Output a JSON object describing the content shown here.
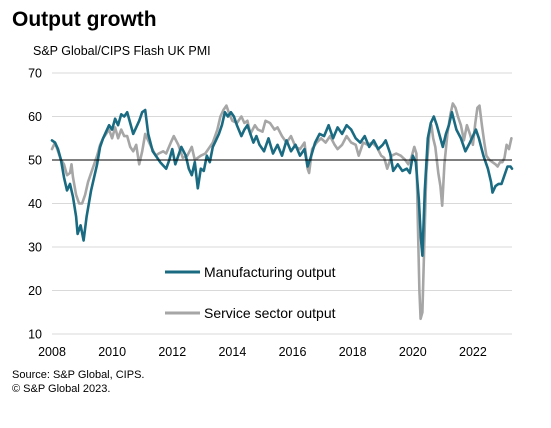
{
  "title": "Output growth",
  "subtitle": "S&P Global/CIPS Flash UK PMI",
  "footer": {
    "source": "Source: S&P Global, CIPS.",
    "copyright": "© S&P Global 2023."
  },
  "chart_data": {
    "type": "line",
    "title": "Output growth",
    "subtitle": "S&P Global/CIPS Flash UK PMI",
    "xlabel": "",
    "ylabel": "",
    "xlim": [
      2008,
      2023.3
    ],
    "ylim": [
      10,
      70
    ],
    "x_ticks": [
      "2008",
      "2010",
      "2012",
      "2014",
      "2016",
      "2018",
      "2020",
      "2022"
    ],
    "y_ticks": [
      "70",
      "60",
      "50",
      "40",
      "30",
      "20",
      "10"
    ],
    "reference_line": 50,
    "grid": "horizontal",
    "legend": "center",
    "series": [
      {
        "name": "Manufacturing output",
        "color": "#1a6b82",
        "points": [
          [
            2008.0,
            54.5
          ],
          [
            2008.1,
            54
          ],
          [
            2008.2,
            52.5
          ],
          [
            2008.3,
            50
          ],
          [
            2008.4,
            46
          ],
          [
            2008.5,
            43
          ],
          [
            2008.6,
            44.5
          ],
          [
            2008.7,
            41.5
          ],
          [
            2008.8,
            37
          ],
          [
            2008.85,
            33
          ],
          [
            2008.95,
            35
          ],
          [
            2009.05,
            31.5
          ],
          [
            2009.15,
            37
          ],
          [
            2009.3,
            43
          ],
          [
            2009.5,
            49
          ],
          [
            2009.6,
            53
          ],
          [
            2009.7,
            55
          ],
          [
            2009.8,
            56.5
          ],
          [
            2009.9,
            58
          ],
          [
            2010.0,
            57
          ],
          [
            2010.1,
            59.5
          ],
          [
            2010.2,
            58
          ],
          [
            2010.3,
            60.5
          ],
          [
            2010.4,
            60
          ],
          [
            2010.5,
            61
          ],
          [
            2010.6,
            58.5
          ],
          [
            2010.7,
            56
          ],
          [
            2010.8,
            57.5
          ],
          [
            2010.9,
            59
          ],
          [
            2011.0,
            61
          ],
          [
            2011.1,
            61.5
          ],
          [
            2011.2,
            56
          ],
          [
            2011.35,
            52
          ],
          [
            2011.5,
            50.5
          ],
          [
            2011.6,
            49.5
          ],
          [
            2011.8,
            48
          ],
          [
            2011.9,
            50
          ],
          [
            2012.0,
            52.5
          ],
          [
            2012.1,
            49
          ],
          [
            2012.2,
            51
          ],
          [
            2012.3,
            53
          ],
          [
            2012.45,
            51
          ],
          [
            2012.55,
            48
          ],
          [
            2012.65,
            46.5
          ],
          [
            2012.75,
            49.5
          ],
          [
            2012.85,
            43.5
          ],
          [
            2012.95,
            48
          ],
          [
            2013.05,
            47.5
          ],
          [
            2013.15,
            51
          ],
          [
            2013.25,
            49.5
          ],
          [
            2013.35,
            53
          ],
          [
            2013.45,
            54.5
          ],
          [
            2013.55,
            56
          ],
          [
            2013.65,
            58
          ],
          [
            2013.75,
            61
          ],
          [
            2013.85,
            60
          ],
          [
            2013.95,
            61
          ],
          [
            2014.05,
            60
          ],
          [
            2014.15,
            58
          ],
          [
            2014.3,
            55.5
          ],
          [
            2014.4,
            57
          ],
          [
            2014.5,
            58
          ],
          [
            2014.6,
            56
          ],
          [
            2014.7,
            54
          ],
          [
            2014.8,
            55.5
          ],
          [
            2014.9,
            53.5
          ],
          [
            2015.05,
            52
          ],
          [
            2015.2,
            55
          ],
          [
            2015.35,
            51.5
          ],
          [
            2015.5,
            53.5
          ],
          [
            2015.65,
            51
          ],
          [
            2015.8,
            54.5
          ],
          [
            2015.95,
            52
          ],
          [
            2016.1,
            53.5
          ],
          [
            2016.25,
            51
          ],
          [
            2016.4,
            52.5
          ],
          [
            2016.5,
            48.5
          ],
          [
            2016.6,
            50.5
          ],
          [
            2016.75,
            54
          ],
          [
            2016.9,
            56
          ],
          [
            2017.05,
            55.5
          ],
          [
            2017.2,
            58
          ],
          [
            2017.35,
            55
          ],
          [
            2017.5,
            57.5
          ],
          [
            2017.65,
            56
          ],
          [
            2017.8,
            58
          ],
          [
            2017.95,
            57
          ],
          [
            2018.1,
            55
          ],
          [
            2018.25,
            54
          ],
          [
            2018.4,
            55.5
          ],
          [
            2018.55,
            53
          ],
          [
            2018.7,
            54.5
          ],
          [
            2018.85,
            52.5
          ],
          [
            2019.0,
            53.5
          ],
          [
            2019.1,
            54.5
          ],
          [
            2019.25,
            51.5
          ],
          [
            2019.35,
            47.5
          ],
          [
            2019.5,
            49
          ],
          [
            2019.65,
            47.5
          ],
          [
            2019.8,
            48
          ],
          [
            2019.9,
            47
          ],
          [
            2020.0,
            51
          ],
          [
            2020.1,
            49.5
          ],
          [
            2020.2,
            41
          ],
          [
            2020.27,
            32
          ],
          [
            2020.32,
            28
          ],
          [
            2020.4,
            43
          ],
          [
            2020.5,
            55
          ],
          [
            2020.6,
            58.5
          ],
          [
            2020.7,
            60
          ],
          [
            2020.8,
            58
          ],
          [
            2020.9,
            55.5
          ],
          [
            2021.0,
            53
          ],
          [
            2021.1,
            56
          ],
          [
            2021.2,
            58
          ],
          [
            2021.3,
            61
          ],
          [
            2021.45,
            57
          ],
          [
            2021.6,
            55
          ],
          [
            2021.75,
            52
          ],
          [
            2021.9,
            54
          ],
          [
            2022.0,
            55.5
          ],
          [
            2022.1,
            57
          ],
          [
            2022.2,
            55
          ],
          [
            2022.35,
            51
          ],
          [
            2022.5,
            48
          ],
          [
            2022.6,
            45
          ],
          [
            2022.65,
            42.5
          ],
          [
            2022.75,
            44
          ],
          [
            2022.85,
            44.5
          ],
          [
            2022.95,
            44.5
          ],
          [
            2023.05,
            46.5
          ],
          [
            2023.15,
            48.5
          ],
          [
            2023.25,
            48.5
          ],
          [
            2023.3,
            48
          ]
        ]
      },
      {
        "name": "Service sector output",
        "color": "#a6a6a6",
        "points": [
          [
            2008.0,
            52.5
          ],
          [
            2008.1,
            54
          ],
          [
            2008.2,
            52
          ],
          [
            2008.3,
            50
          ],
          [
            2008.4,
            49
          ],
          [
            2008.5,
            46.5
          ],
          [
            2008.6,
            47
          ],
          [
            2008.65,
            49
          ],
          [
            2008.7,
            46
          ],
          [
            2008.8,
            42
          ],
          [
            2008.9,
            40
          ],
          [
            2009.0,
            40
          ],
          [
            2009.1,
            42
          ],
          [
            2009.2,
            45
          ],
          [
            2009.35,
            48
          ],
          [
            2009.5,
            51
          ],
          [
            2009.6,
            53.5
          ],
          [
            2009.7,
            55
          ],
          [
            2009.8,
            56
          ],
          [
            2009.9,
            57
          ],
          [
            2010.0,
            55
          ],
          [
            2010.1,
            57.5
          ],
          [
            2010.2,
            55
          ],
          [
            2010.3,
            57
          ],
          [
            2010.4,
            55.5
          ],
          [
            2010.5,
            55.5
          ],
          [
            2010.6,
            53
          ],
          [
            2010.7,
            52
          ],
          [
            2010.8,
            53.5
          ],
          [
            2010.9,
            49
          ],
          [
            2011.0,
            52
          ],
          [
            2011.1,
            56
          ],
          [
            2011.2,
            54.5
          ],
          [
            2011.3,
            53
          ],
          [
            2011.45,
            51
          ],
          [
            2011.55,
            51.5
          ],
          [
            2011.7,
            52
          ],
          [
            2011.8,
            51.5
          ],
          [
            2011.95,
            54
          ],
          [
            2012.05,
            55.5
          ],
          [
            2012.2,
            53.5
          ],
          [
            2012.35,
            50.5
          ],
          [
            2012.5,
            51
          ],
          [
            2012.65,
            53
          ],
          [
            2012.75,
            50
          ],
          [
            2012.85,
            50.5
          ],
          [
            2012.95,
            51
          ],
          [
            2013.1,
            51.5
          ],
          [
            2013.2,
            52.5
          ],
          [
            2013.35,
            54
          ],
          [
            2013.5,
            57
          ],
          [
            2013.6,
            60
          ],
          [
            2013.7,
            61.5
          ],
          [
            2013.8,
            62.5
          ],
          [
            2013.9,
            60.5
          ],
          [
            2014.0,
            59
          ],
          [
            2014.15,
            58.5
          ],
          [
            2014.3,
            60
          ],
          [
            2014.4,
            58.5
          ],
          [
            2014.5,
            59
          ],
          [
            2014.6,
            56
          ],
          [
            2014.75,
            58
          ],
          [
            2014.85,
            57
          ],
          [
            2015.0,
            56.5
          ],
          [
            2015.1,
            59
          ],
          [
            2015.25,
            58.5
          ],
          [
            2015.4,
            57
          ],
          [
            2015.5,
            57.5
          ],
          [
            2015.65,
            55.5
          ],
          [
            2015.8,
            54
          ],
          [
            2015.95,
            55.5
          ],
          [
            2016.1,
            53
          ],
          [
            2016.25,
            52.5
          ],
          [
            2016.4,
            54
          ],
          [
            2016.5,
            48
          ],
          [
            2016.55,
            47
          ],
          [
            2016.65,
            52.5
          ],
          [
            2016.8,
            54
          ],
          [
            2016.95,
            55
          ],
          [
            2017.1,
            54
          ],
          [
            2017.25,
            55.5
          ],
          [
            2017.4,
            53.5
          ],
          [
            2017.5,
            52.5
          ],
          [
            2017.65,
            53.5
          ],
          [
            2017.8,
            55.5
          ],
          [
            2017.95,
            54
          ],
          [
            2018.1,
            53.5
          ],
          [
            2018.2,
            51
          ],
          [
            2018.35,
            54
          ],
          [
            2018.5,
            53.5
          ],
          [
            2018.65,
            54
          ],
          [
            2018.8,
            53
          ],
          [
            2018.95,
            51
          ],
          [
            2019.05,
            50.5
          ],
          [
            2019.15,
            48
          ],
          [
            2019.3,
            51
          ],
          [
            2019.45,
            51.5
          ],
          [
            2019.6,
            51
          ],
          [
            2019.75,
            50
          ],
          [
            2019.85,
            49
          ],
          [
            2019.95,
            50.5
          ],
          [
            2020.05,
            53
          ],
          [
            2020.12,
            51.5
          ],
          [
            2020.17,
            35
          ],
          [
            2020.22,
            20
          ],
          [
            2020.26,
            13.5
          ],
          [
            2020.32,
            15
          ],
          [
            2020.38,
            30
          ],
          [
            2020.45,
            47
          ],
          [
            2020.55,
            56
          ],
          [
            2020.62,
            58
          ],
          [
            2020.68,
            55
          ],
          [
            2020.75,
            53
          ],
          [
            2020.85,
            47
          ],
          [
            2020.92,
            44
          ],
          [
            2020.98,
            39.5
          ],
          [
            2021.05,
            49
          ],
          [
            2021.15,
            56
          ],
          [
            2021.25,
            60.5
          ],
          [
            2021.33,
            63
          ],
          [
            2021.42,
            62
          ],
          [
            2021.5,
            60
          ],
          [
            2021.6,
            58
          ],
          [
            2021.7,
            54.5
          ],
          [
            2021.8,
            58
          ],
          [
            2021.9,
            56
          ],
          [
            2022.0,
            53.5
          ],
          [
            2022.08,
            58.5
          ],
          [
            2022.15,
            62
          ],
          [
            2022.22,
            62.5
          ],
          [
            2022.3,
            58
          ],
          [
            2022.38,
            54
          ],
          [
            2022.45,
            51
          ],
          [
            2022.55,
            50
          ],
          [
            2022.65,
            49.5
          ],
          [
            2022.75,
            49
          ],
          [
            2022.82,
            48.5
          ],
          [
            2022.9,
            49.5
          ],
          [
            2022.98,
            49.5
          ],
          [
            2023.05,
            50.5
          ],
          [
            2023.12,
            53.5
          ],
          [
            2023.2,
            52.5
          ],
          [
            2023.28,
            55
          ]
        ]
      }
    ]
  }
}
